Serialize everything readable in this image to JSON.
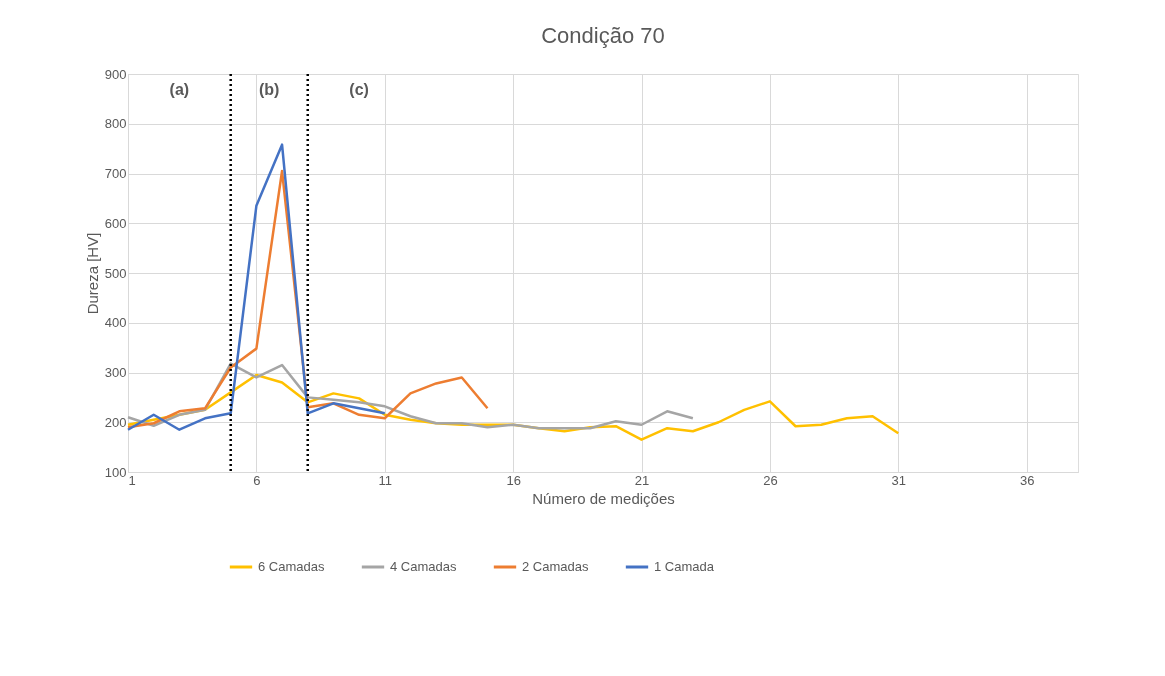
{
  "chart_data": {
    "type": "line",
    "title": "Condição 70",
    "xlabel": "Número de medições",
    "ylabel": "Dureza [HV]",
    "x": [
      1,
      2,
      3,
      4,
      5,
      6,
      7,
      8,
      9,
      10,
      11,
      12,
      13,
      14,
      15,
      16,
      17,
      18,
      19,
      20,
      21,
      22,
      23,
      24,
      25,
      26,
      27,
      28,
      29,
      30,
      31
    ],
    "series": [
      {
        "name": "6 Camadas",
        "color": "#ffc000",
        "values": [
          195,
          205,
          215,
          225,
          260,
          295,
          280,
          240,
          258,
          248,
          215,
          205,
          198,
          195,
          195,
          195,
          188,
          182,
          190,
          192,
          165,
          188,
          182,
          200,
          225,
          242,
          192,
          195,
          208,
          212,
          178
        ]
      },
      {
        "name": "4 Camadas",
        "color": "#a5a5a5",
        "values": [
          210,
          193,
          215,
          225,
          318,
          290,
          315,
          250,
          245,
          240,
          232,
          212,
          198,
          198,
          190,
          195,
          188,
          188,
          188,
          202,
          195,
          222,
          208,
          null,
          null,
          null,
          null,
          null,
          null,
          null,
          null
        ]
      },
      {
        "name": "2 Camadas",
        "color": "#ed7d31",
        "values": [
          190,
          198,
          222,
          228,
          310,
          348,
          705,
          230,
          238,
          215,
          208,
          258,
          278,
          290,
          228,
          null,
          null,
          null,
          null,
          null,
          null,
          null,
          null,
          null,
          null,
          null,
          null,
          null,
          null,
          null,
          null
        ]
      },
      {
        "name": "1 Camada",
        "color": "#4472c4",
        "values": [
          185,
          215,
          185,
          208,
          218,
          635,
          758,
          218,
          238,
          228,
          218,
          null,
          null,
          null,
          null,
          null,
          null,
          null,
          null,
          null,
          null,
          null,
          null,
          null,
          null,
          null,
          null,
          null,
          null,
          null,
          null
        ]
      }
    ],
    "xlim": [
      1,
      38
    ],
    "xticks": [
      1,
      6,
      11,
      16,
      21,
      26,
      31,
      36
    ],
    "ylim": [
      100,
      900
    ],
    "yticks": [
      100,
      200,
      300,
      400,
      500,
      600,
      700,
      800,
      900
    ],
    "ref_lines": [
      {
        "axis": "x",
        "value": 5,
        "color": "#000000",
        "line_style": "dotted"
      },
      {
        "axis": "x",
        "value": 8,
        "color": "#000000",
        "line_style": "dotted"
      }
    ],
    "annotations": [
      "(a)",
      "(b)",
      "(c)"
    ],
    "grid": true,
    "legend": "bottom",
    "marker": "none",
    "line_style": "solid"
  }
}
